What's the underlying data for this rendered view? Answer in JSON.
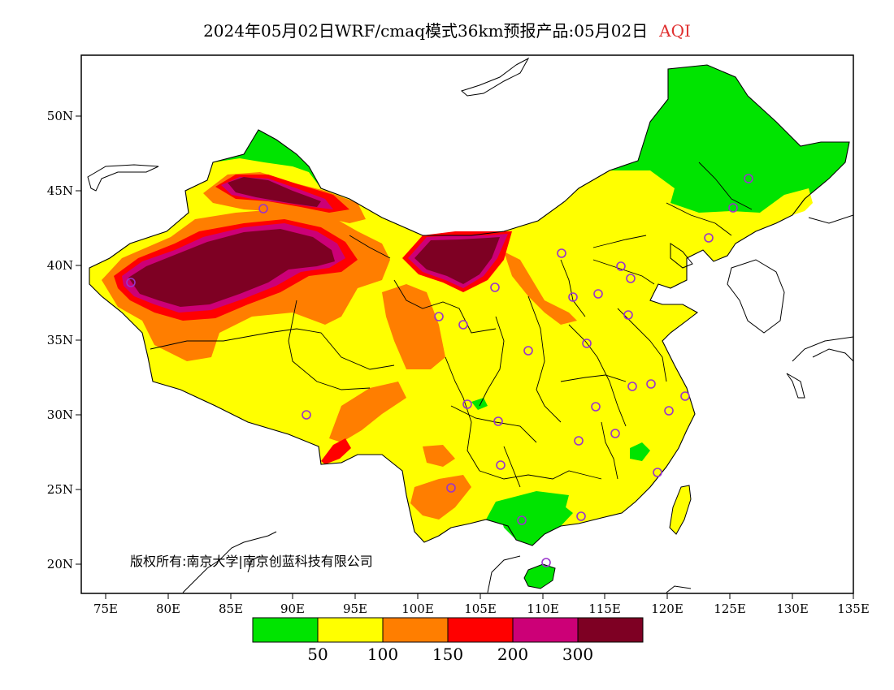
{
  "title": {
    "main": "2024年05月02日WRF/cmaq模式36km预报产品:05月02日",
    "variable": "AQI",
    "variable_color": "#e03030"
  },
  "axes": {
    "lon_labels": [
      "75E",
      "80E",
      "85E",
      "90E",
      "95E",
      "100E",
      "105E",
      "110E",
      "115E",
      "120E",
      "125E",
      "130E",
      "135E"
    ],
    "lat_labels": [
      "50N",
      "45N",
      "40N",
      "35N",
      "30N",
      "25N",
      "20N"
    ]
  },
  "colorbar": {
    "colors": [
      "#00e400",
      "#ffff00",
      "#ff7e00",
      "#ff0000",
      "#cc0077",
      "#7e0023"
    ],
    "labels": [
      "50",
      "100",
      "150",
      "200",
      "300"
    ]
  },
  "copyright": "版权所有:南京大学|南京创蓝科技有限公司",
  "marker_color": "#9933cc"
}
